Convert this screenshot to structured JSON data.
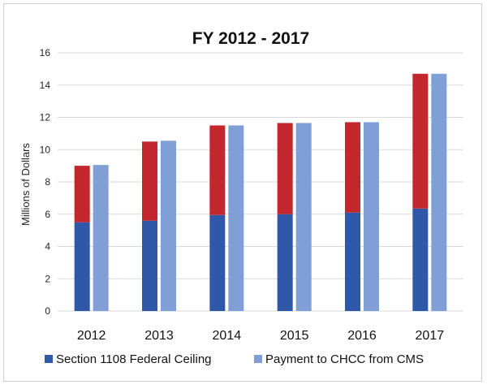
{
  "chart_data": {
    "type": "bar",
    "title": "FY 2012 - 2017",
    "ylabel": "Millions of Dollars",
    "xlabel": "",
    "categories": [
      "2012",
      "2013",
      "2014",
      "2015",
      "2016",
      "2017"
    ],
    "ylim": [
      0,
      16
    ],
    "yticks": [
      0,
      2,
      4,
      6,
      8,
      10,
      12,
      14,
      16
    ],
    "grid": true,
    "legend_position": "bottom",
    "series": [
      {
        "name": "Section 1108 Federal Ceiling",
        "values": [
          9.0,
          10.5,
          11.5,
          11.65,
          11.7,
          14.7
        ],
        "base_portion": [
          5.5,
          5.6,
          5.95,
          6.0,
          6.1,
          6.35
        ],
        "base_color": "#2f58a8",
        "top_color": "#c1272d"
      },
      {
        "name": "Payment to CHCC from CMS",
        "values": [
          9.05,
          10.55,
          11.5,
          11.65,
          11.7,
          14.7
        ],
        "color": "#7f9fd6"
      }
    ]
  }
}
